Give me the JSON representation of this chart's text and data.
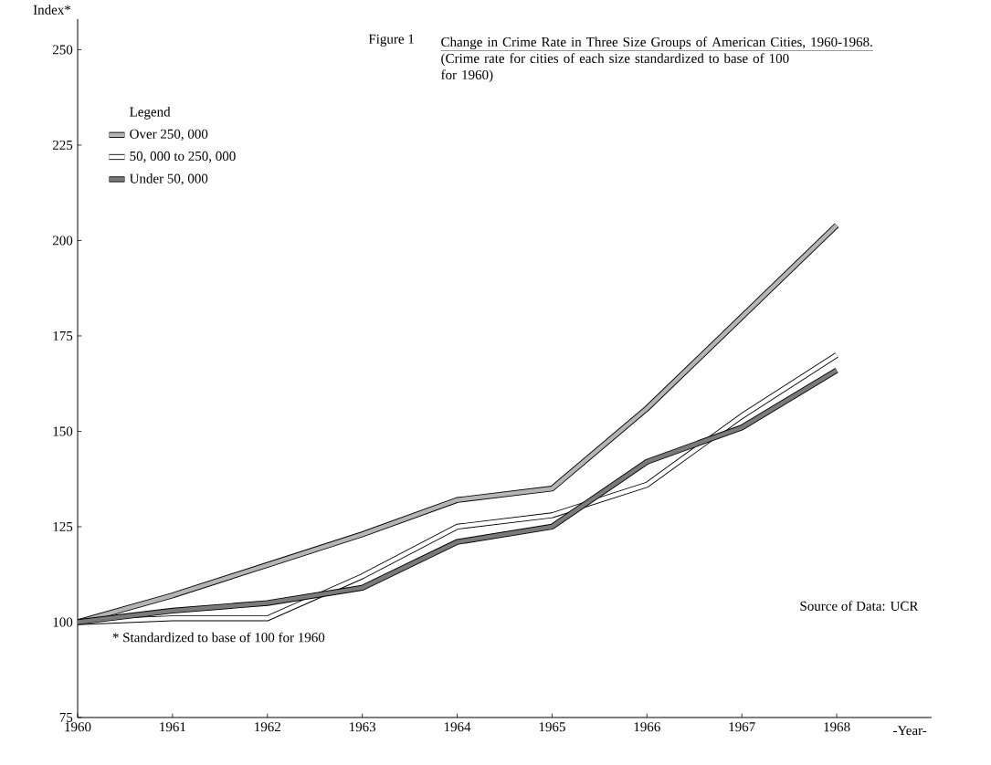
{
  "chart_data": {
    "type": "line",
    "title": "Change in Crime Rate in Three Size Groups of American Cities, 1960-1968.",
    "subtitle": "(Crime rate for cities of each size standardized to base of 100 for 1960)",
    "xlabel": "-Year-",
    "ylabel": "Index*",
    "legend_title": "Legend",
    "legend": "top left",
    "annotations": [
      "Figure 1",
      "* Standardized to base of 100 for 1960",
      "Source of Data: UCR"
    ],
    "x": [
      1960,
      1961,
      1962,
      1963,
      1964,
      1965,
      1966,
      1967,
      1968
    ],
    "series": [
      {
        "name": "Over 250, 000",
        "color": "#b4b4b4",
        "values": [
          100,
          107,
          115,
          123,
          132,
          135,
          156,
          180,
          204
        ]
      },
      {
        "name": "50, 000 to 250, 000",
        "color": "#ffffff",
        "values": [
          100,
          101,
          101,
          112,
          125,
          128,
          136,
          154,
          170
        ]
      },
      {
        "name": "Under 50, 000",
        "color": "#7a7a7a",
        "values": [
          100,
          103,
          105,
          109,
          121,
          125,
          142,
          151,
          166
        ]
      }
    ],
    "xlim": [
      1960,
      1969
    ],
    "ylim": [
      75,
      258
    ],
    "xticks": [
      1960,
      1961,
      1962,
      1963,
      1964,
      1965,
      1966,
      1967,
      1968
    ],
    "yticks": [
      75,
      100,
      125,
      150,
      175,
      200,
      225,
      250
    ]
  }
}
